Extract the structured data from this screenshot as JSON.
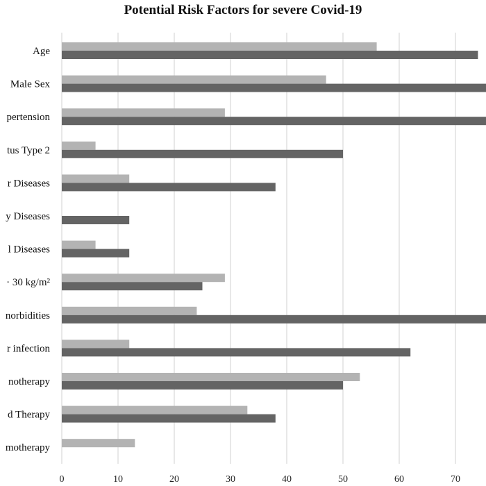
{
  "chart_data": {
    "type": "bar",
    "orientation": "horizontal",
    "title": "Potential Risk Factors for severe Covid-19",
    "xlabel": "",
    "ylabel": "",
    "categories": [
      "Age",
      "Male Sex",
      "pertension",
      "tus Type 2",
      "r Diseases",
      "y Diseases",
      "l Diseases",
      "· 30 kg/m²",
      "norbidities",
      "r infection",
      "notherapy",
      "d Therapy",
      "motherapy"
    ],
    "series": [
      {
        "color": "#b3b3b3",
        "values": [
          56,
          47,
          29,
          6,
          12,
          0,
          6,
          29,
          24,
          12,
          53,
          33,
          13
        ]
      },
      {
        "color": "#646464",
        "values": [
          74,
          76,
          76,
          50,
          38,
          12,
          12,
          25,
          76,
          62,
          50,
          38,
          0
        ]
      }
    ],
    "xlim": [
      0,
      75
    ],
    "xticks": [
      0,
      10,
      20,
      30,
      40,
      50,
      60,
      70
    ],
    "grid": true,
    "legend": "none"
  }
}
